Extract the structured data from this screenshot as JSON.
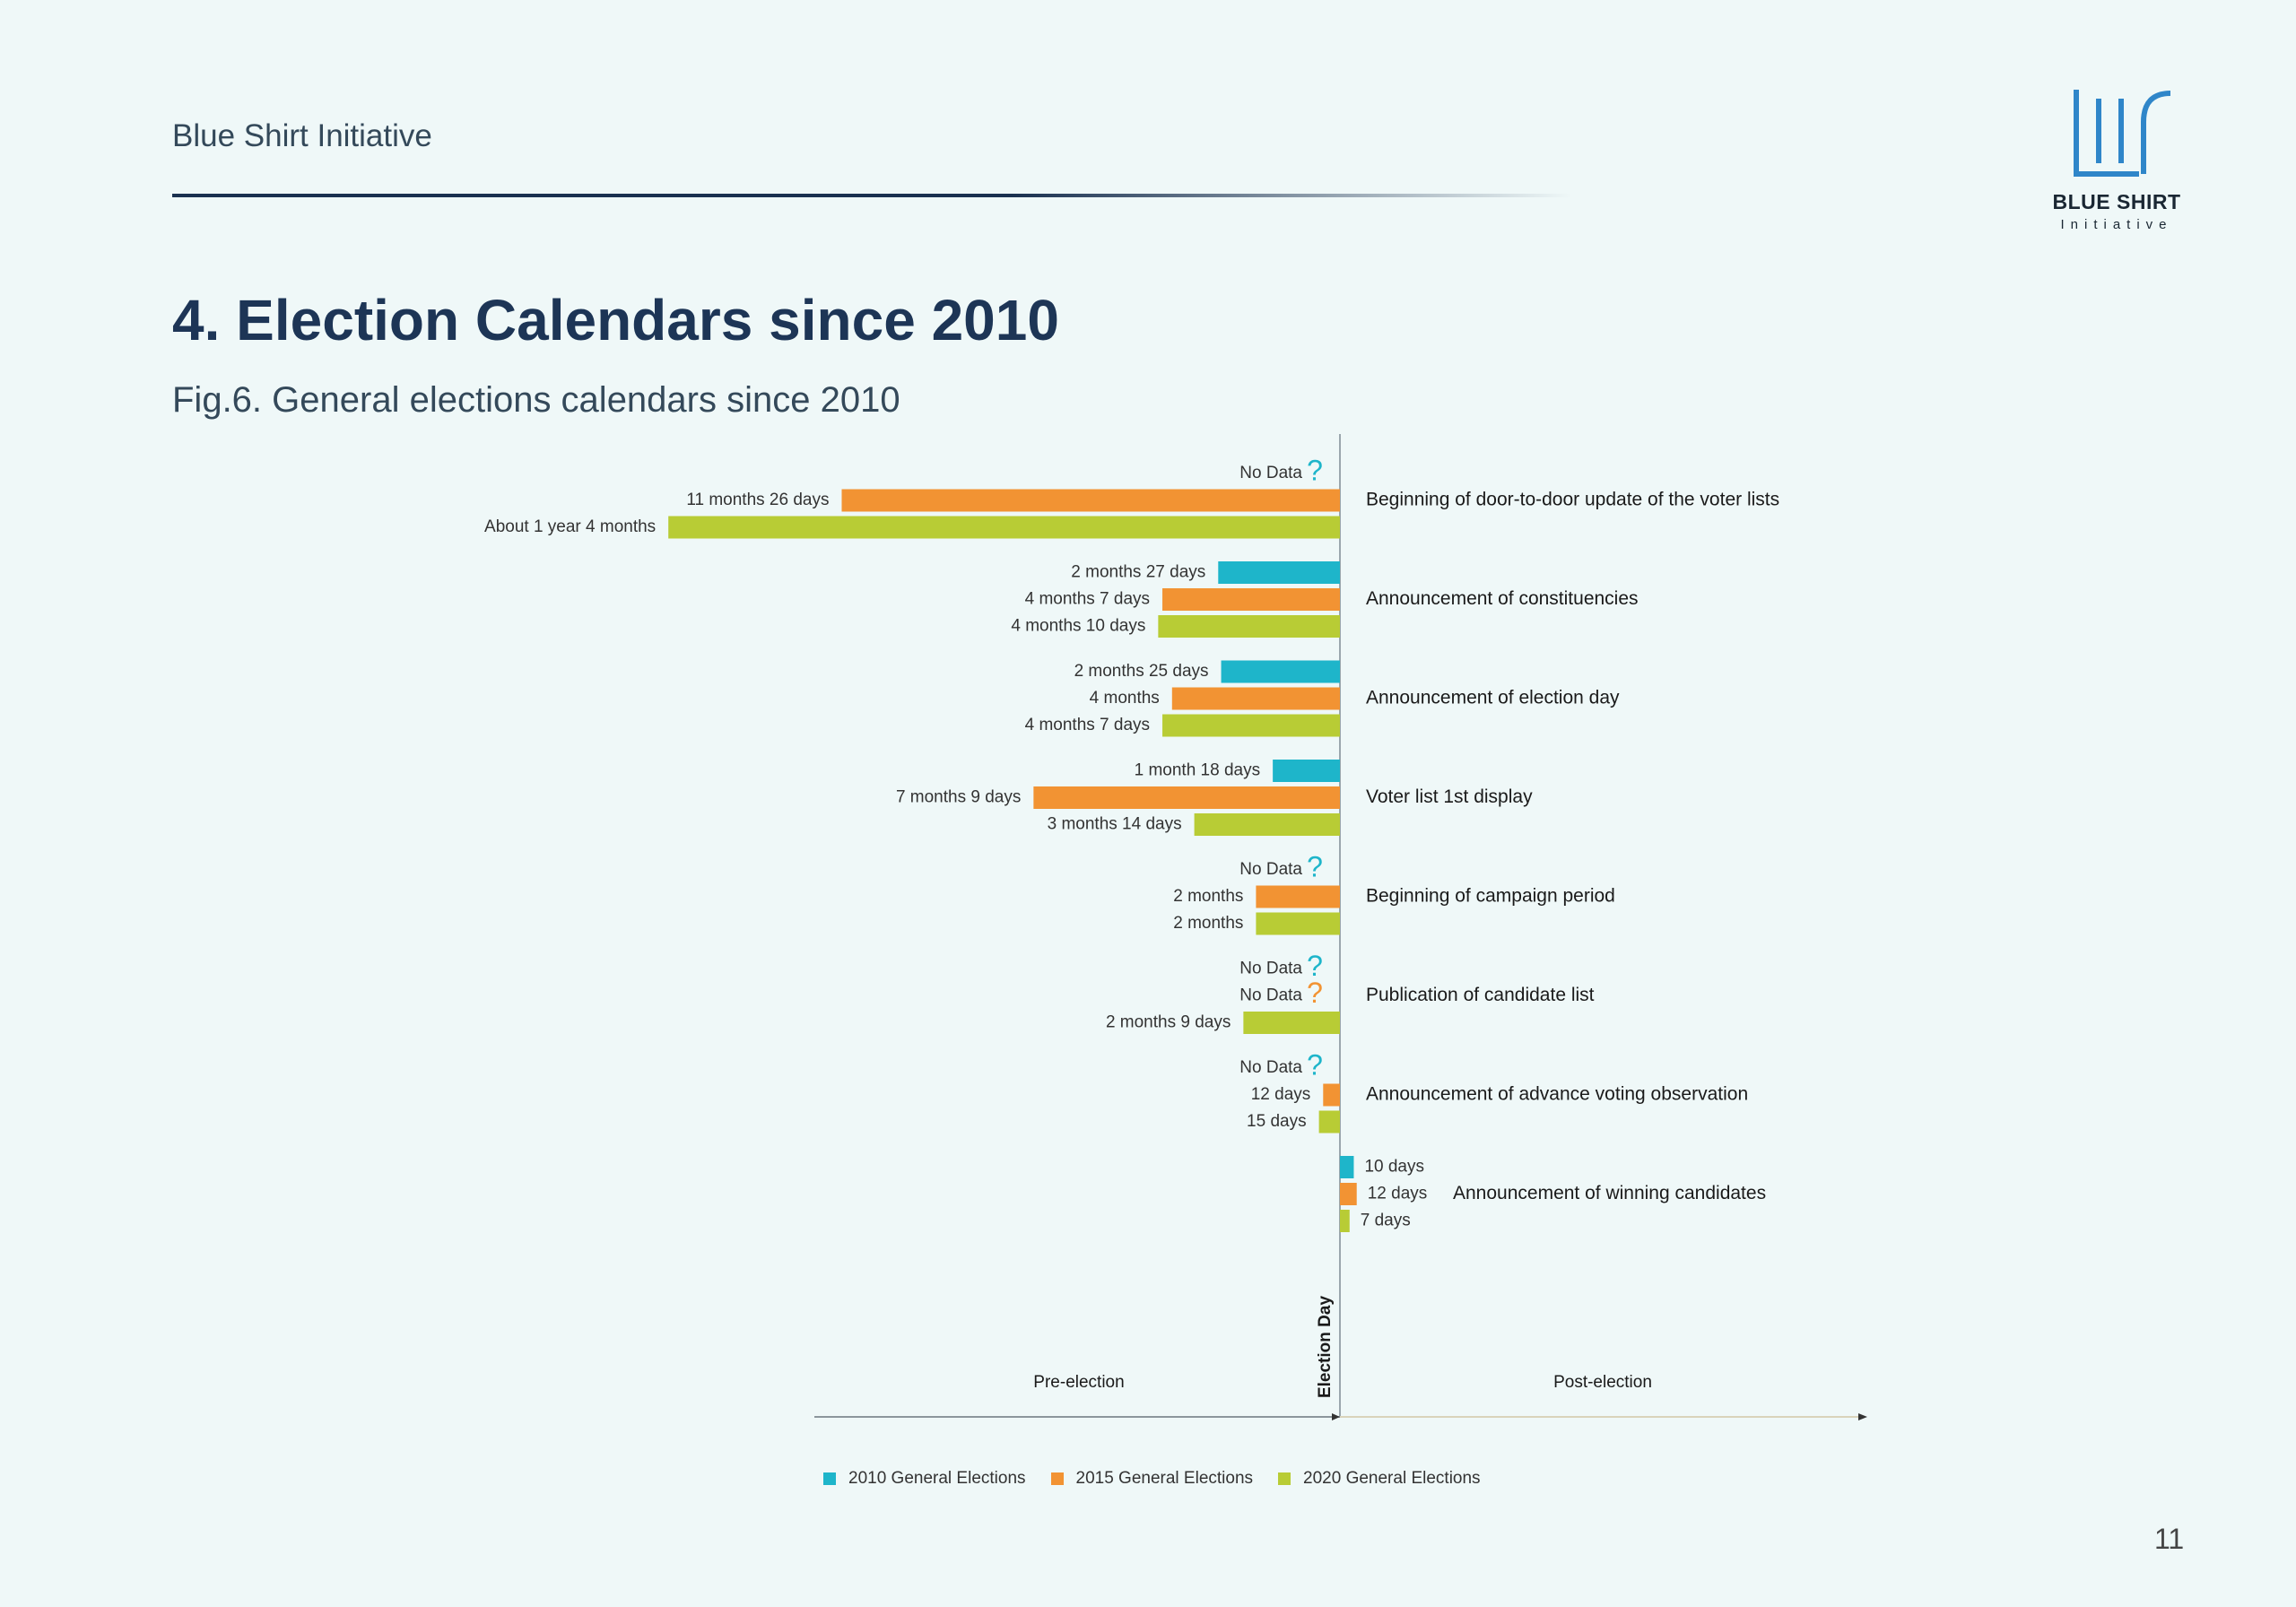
{
  "header": {
    "org": "Blue Shirt Initiative"
  },
  "logo": {
    "name": "BLUE SHIRT",
    "sub": "Initiative"
  },
  "page_title": "4. Election Calendars since 2010",
  "fig_title": "Fig.6. General elections calendars since 2010",
  "page_number": "11",
  "colors": {
    "s2010": "#1eb5ca",
    "s2015": "#f29333",
    "s2020": "#b8cc35",
    "axis": "#9aa6ad"
  },
  "chart_data": {
    "type": "bar",
    "orientation": "horizontal",
    "unit": "months",
    "axis_labels": {
      "pre": "Pre-election",
      "post": "Post-election",
      "center": "Election Day"
    },
    "series": [
      {
        "name": "2010 General Elections",
        "color": "#1eb5ca"
      },
      {
        "name": "2015 General Elections",
        "color": "#f29333"
      },
      {
        "name": "2020 General Elections",
        "color": "#b8cc35"
      }
    ],
    "categories": [
      {
        "label": "Beginning of door-to-door update of the voter lists",
        "values": [
          {
            "series": 0,
            "value": null,
            "text": "No Data"
          },
          {
            "series": 1,
            "value": -11.87,
            "text": "11 months 26 days"
          },
          {
            "series": 2,
            "value": -16,
            "text": "About 1 year 4 months"
          }
        ]
      },
      {
        "label": "Announcement of constituencies",
        "values": [
          {
            "series": 0,
            "value": -2.9,
            "text": "2 months 27 days"
          },
          {
            "series": 1,
            "value": -4.23,
            "text": "4 months 7 days"
          },
          {
            "series": 2,
            "value": -4.33,
            "text": "4 months 10 days"
          }
        ]
      },
      {
        "label": "Announcement of election day",
        "values": [
          {
            "series": 0,
            "value": -2.83,
            "text": "2 months 25 days"
          },
          {
            "series": 1,
            "value": -4,
            "text": "4 months"
          },
          {
            "series": 2,
            "value": -4.23,
            "text": "4 months 7 days"
          }
        ]
      },
      {
        "label": "Voter list 1st display",
        "values": [
          {
            "series": 0,
            "value": -1.6,
            "text": "1 month 18 days"
          },
          {
            "series": 1,
            "value": -7.3,
            "text": "7 months 9 days"
          },
          {
            "series": 2,
            "value": -3.47,
            "text": "3 months 14 days"
          }
        ]
      },
      {
        "label": "Beginning of campaign period",
        "values": [
          {
            "series": 0,
            "value": null,
            "text": "No Data"
          },
          {
            "series": 1,
            "value": -2,
            "text": "2 months"
          },
          {
            "series": 2,
            "value": -2,
            "text": "2 months"
          }
        ]
      },
      {
        "label": "Publication of candidate list",
        "values": [
          {
            "series": 0,
            "value": null,
            "text": "No Data"
          },
          {
            "series": 1,
            "value": null,
            "text": "No Data"
          },
          {
            "series": 2,
            "value": -2.3,
            "text": "2 months 9 days"
          }
        ]
      },
      {
        "label": "Announcement of advance voting observation",
        "values": [
          {
            "series": 0,
            "value": null,
            "text": "No Data"
          },
          {
            "series": 1,
            "value": -0.4,
            "text": "12 days"
          },
          {
            "series": 2,
            "value": -0.5,
            "text": "15 days"
          }
        ]
      },
      {
        "label": "Announcement of winning candidates",
        "values": [
          {
            "series": 0,
            "value": 0.33,
            "text": "10 days"
          },
          {
            "series": 1,
            "value": 0.4,
            "text": "12 days"
          },
          {
            "series": 2,
            "value": 0.23,
            "text": "7 days"
          }
        ]
      }
    ]
  }
}
